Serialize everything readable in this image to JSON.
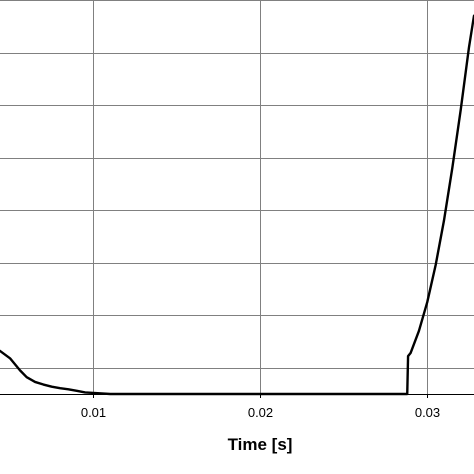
{
  "chart_data": {
    "type": "line",
    "title": "",
    "xlabel": "Time [s]",
    "ylabel": "",
    "xlim": [
      0.0044,
      0.0328
    ],
    "ylim": [
      0,
      7.5
    ],
    "x_ticks": [
      0.01,
      0.02,
      0.03
    ],
    "x_tick_labels": [
      "0.01",
      "0.02",
      "0.03"
    ],
    "y_gridlines": [
      0.5,
      1.5,
      2.5,
      3.5,
      4.5,
      5.5,
      6.5,
      7.5
    ],
    "grid": true,
    "legend": "none",
    "series": [
      {
        "color": "#000000",
        "x": [
          0.0044,
          0.005,
          0.0056,
          0.006,
          0.0065,
          0.007,
          0.0075,
          0.008,
          0.0085,
          0.009,
          0.0095,
          0.01,
          0.0105,
          0.011,
          0.012,
          0.015,
          0.02,
          0.025,
          0.0288,
          0.02885,
          0.029,
          0.0295,
          0.03,
          0.0305,
          0.031,
          0.0315,
          0.032,
          0.0325,
          0.0328
        ],
        "y": [
          0.82,
          0.68,
          0.45,
          0.32,
          0.23,
          0.18,
          0.14,
          0.11,
          0.09,
          0.06,
          0.03,
          0.02,
          0.01,
          0.0,
          0.0,
          0.0,
          0.0,
          0.0,
          0.0,
          0.72,
          0.78,
          1.2,
          1.75,
          2.45,
          3.3,
          4.3,
          5.4,
          6.6,
          7.2
        ]
      }
    ]
  }
}
